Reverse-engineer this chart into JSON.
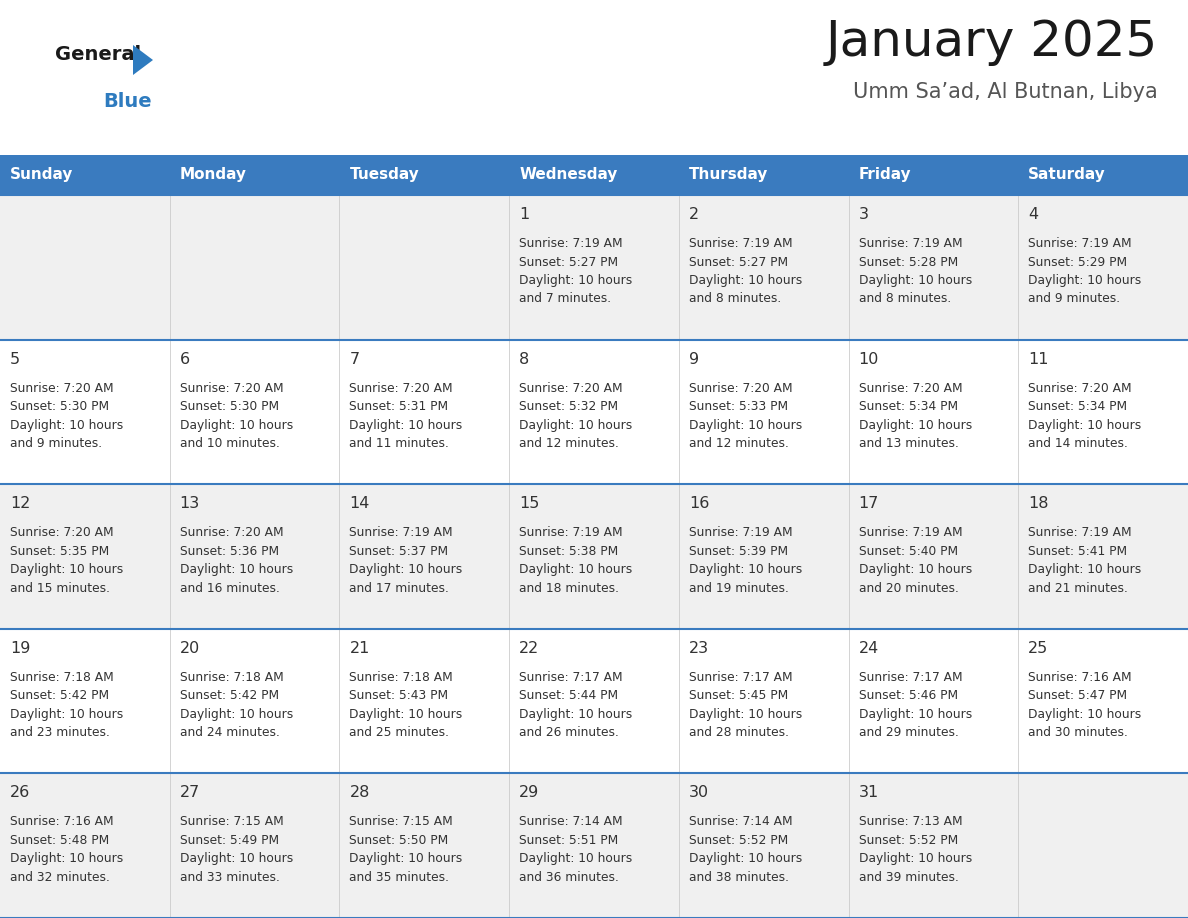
{
  "title": "January 2025",
  "subtitle": "Umm Sa’ad, Al Butnan, Libya",
  "header_bg_color": "#3a7bbf",
  "header_text_color": "#ffffff",
  "odd_row_bg": "#f0f0f0",
  "even_row_bg": "#ffffff",
  "day_names": [
    "Sunday",
    "Monday",
    "Tuesday",
    "Wednesday",
    "Thursday",
    "Friday",
    "Saturday"
  ],
  "title_color": "#1a1a1a",
  "subtitle_color": "#555555",
  "cell_text_color": "#333333",
  "divider_color": "#3a7bbf",
  "logo_general_color": "#1a1a1a",
  "logo_blue_color": "#2e7bbf",
  "logo_triangle_color": "#2e7bbf",
  "calendar_data": [
    [
      {
        "day": "",
        "sunrise": "",
        "sunset": "",
        "daylight_hours": "",
        "daylight_mins": ""
      },
      {
        "day": "",
        "sunrise": "",
        "sunset": "",
        "daylight_hours": "",
        "daylight_mins": ""
      },
      {
        "day": "",
        "sunrise": "",
        "sunset": "",
        "daylight_hours": "",
        "daylight_mins": ""
      },
      {
        "day": "1",
        "sunrise": "7:19 AM",
        "sunset": "5:27 PM",
        "daylight_hours": "10 hours",
        "daylight_mins": "and 7 minutes."
      },
      {
        "day": "2",
        "sunrise": "7:19 AM",
        "sunset": "5:27 PM",
        "daylight_hours": "10 hours",
        "daylight_mins": "and 8 minutes."
      },
      {
        "day": "3",
        "sunrise": "7:19 AM",
        "sunset": "5:28 PM",
        "daylight_hours": "10 hours",
        "daylight_mins": "and 8 minutes."
      },
      {
        "day": "4",
        "sunrise": "7:19 AM",
        "sunset": "5:29 PM",
        "daylight_hours": "10 hours",
        "daylight_mins": "and 9 minutes."
      }
    ],
    [
      {
        "day": "5",
        "sunrise": "7:20 AM",
        "sunset": "5:30 PM",
        "daylight_hours": "10 hours",
        "daylight_mins": "and 9 minutes."
      },
      {
        "day": "6",
        "sunrise": "7:20 AM",
        "sunset": "5:30 PM",
        "daylight_hours": "10 hours",
        "daylight_mins": "and 10 minutes."
      },
      {
        "day": "7",
        "sunrise": "7:20 AM",
        "sunset": "5:31 PM",
        "daylight_hours": "10 hours",
        "daylight_mins": "and 11 minutes."
      },
      {
        "day": "8",
        "sunrise": "7:20 AM",
        "sunset": "5:32 PM",
        "daylight_hours": "10 hours",
        "daylight_mins": "and 12 minutes."
      },
      {
        "day": "9",
        "sunrise": "7:20 AM",
        "sunset": "5:33 PM",
        "daylight_hours": "10 hours",
        "daylight_mins": "and 12 minutes."
      },
      {
        "day": "10",
        "sunrise": "7:20 AM",
        "sunset": "5:34 PM",
        "daylight_hours": "10 hours",
        "daylight_mins": "and 13 minutes."
      },
      {
        "day": "11",
        "sunrise": "7:20 AM",
        "sunset": "5:34 PM",
        "daylight_hours": "10 hours",
        "daylight_mins": "and 14 minutes."
      }
    ],
    [
      {
        "day": "12",
        "sunrise": "7:20 AM",
        "sunset": "5:35 PM",
        "daylight_hours": "10 hours",
        "daylight_mins": "and 15 minutes."
      },
      {
        "day": "13",
        "sunrise": "7:20 AM",
        "sunset": "5:36 PM",
        "daylight_hours": "10 hours",
        "daylight_mins": "and 16 minutes."
      },
      {
        "day": "14",
        "sunrise": "7:19 AM",
        "sunset": "5:37 PM",
        "daylight_hours": "10 hours",
        "daylight_mins": "and 17 minutes."
      },
      {
        "day": "15",
        "sunrise": "7:19 AM",
        "sunset": "5:38 PM",
        "daylight_hours": "10 hours",
        "daylight_mins": "and 18 minutes."
      },
      {
        "day": "16",
        "sunrise": "7:19 AM",
        "sunset": "5:39 PM",
        "daylight_hours": "10 hours",
        "daylight_mins": "and 19 minutes."
      },
      {
        "day": "17",
        "sunrise": "7:19 AM",
        "sunset": "5:40 PM",
        "daylight_hours": "10 hours",
        "daylight_mins": "and 20 minutes."
      },
      {
        "day": "18",
        "sunrise": "7:19 AM",
        "sunset": "5:41 PM",
        "daylight_hours": "10 hours",
        "daylight_mins": "and 21 minutes."
      }
    ],
    [
      {
        "day": "19",
        "sunrise": "7:18 AM",
        "sunset": "5:42 PM",
        "daylight_hours": "10 hours",
        "daylight_mins": "and 23 minutes."
      },
      {
        "day": "20",
        "sunrise": "7:18 AM",
        "sunset": "5:42 PM",
        "daylight_hours": "10 hours",
        "daylight_mins": "and 24 minutes."
      },
      {
        "day": "21",
        "sunrise": "7:18 AM",
        "sunset": "5:43 PM",
        "daylight_hours": "10 hours",
        "daylight_mins": "and 25 minutes."
      },
      {
        "day": "22",
        "sunrise": "7:17 AM",
        "sunset": "5:44 PM",
        "daylight_hours": "10 hours",
        "daylight_mins": "and 26 minutes."
      },
      {
        "day": "23",
        "sunrise": "7:17 AM",
        "sunset": "5:45 PM",
        "daylight_hours": "10 hours",
        "daylight_mins": "and 28 minutes."
      },
      {
        "day": "24",
        "sunrise": "7:17 AM",
        "sunset": "5:46 PM",
        "daylight_hours": "10 hours",
        "daylight_mins": "and 29 minutes."
      },
      {
        "day": "25",
        "sunrise": "7:16 AM",
        "sunset": "5:47 PM",
        "daylight_hours": "10 hours",
        "daylight_mins": "and 30 minutes."
      }
    ],
    [
      {
        "day": "26",
        "sunrise": "7:16 AM",
        "sunset": "5:48 PM",
        "daylight_hours": "10 hours",
        "daylight_mins": "and 32 minutes."
      },
      {
        "day": "27",
        "sunrise": "7:15 AM",
        "sunset": "5:49 PM",
        "daylight_hours": "10 hours",
        "daylight_mins": "and 33 minutes."
      },
      {
        "day": "28",
        "sunrise": "7:15 AM",
        "sunset": "5:50 PM",
        "daylight_hours": "10 hours",
        "daylight_mins": "and 35 minutes."
      },
      {
        "day": "29",
        "sunrise": "7:14 AM",
        "sunset": "5:51 PM",
        "daylight_hours": "10 hours",
        "daylight_mins": "and 36 minutes."
      },
      {
        "day": "30",
        "sunrise": "7:14 AM",
        "sunset": "5:52 PM",
        "daylight_hours": "10 hours",
        "daylight_mins": "and 38 minutes."
      },
      {
        "day": "31",
        "sunrise": "7:13 AM",
        "sunset": "5:52 PM",
        "daylight_hours": "10 hours",
        "daylight_mins": "and 39 minutes."
      },
      {
        "day": "",
        "sunrise": "",
        "sunset": "",
        "daylight_hours": "",
        "daylight_mins": ""
      }
    ]
  ]
}
